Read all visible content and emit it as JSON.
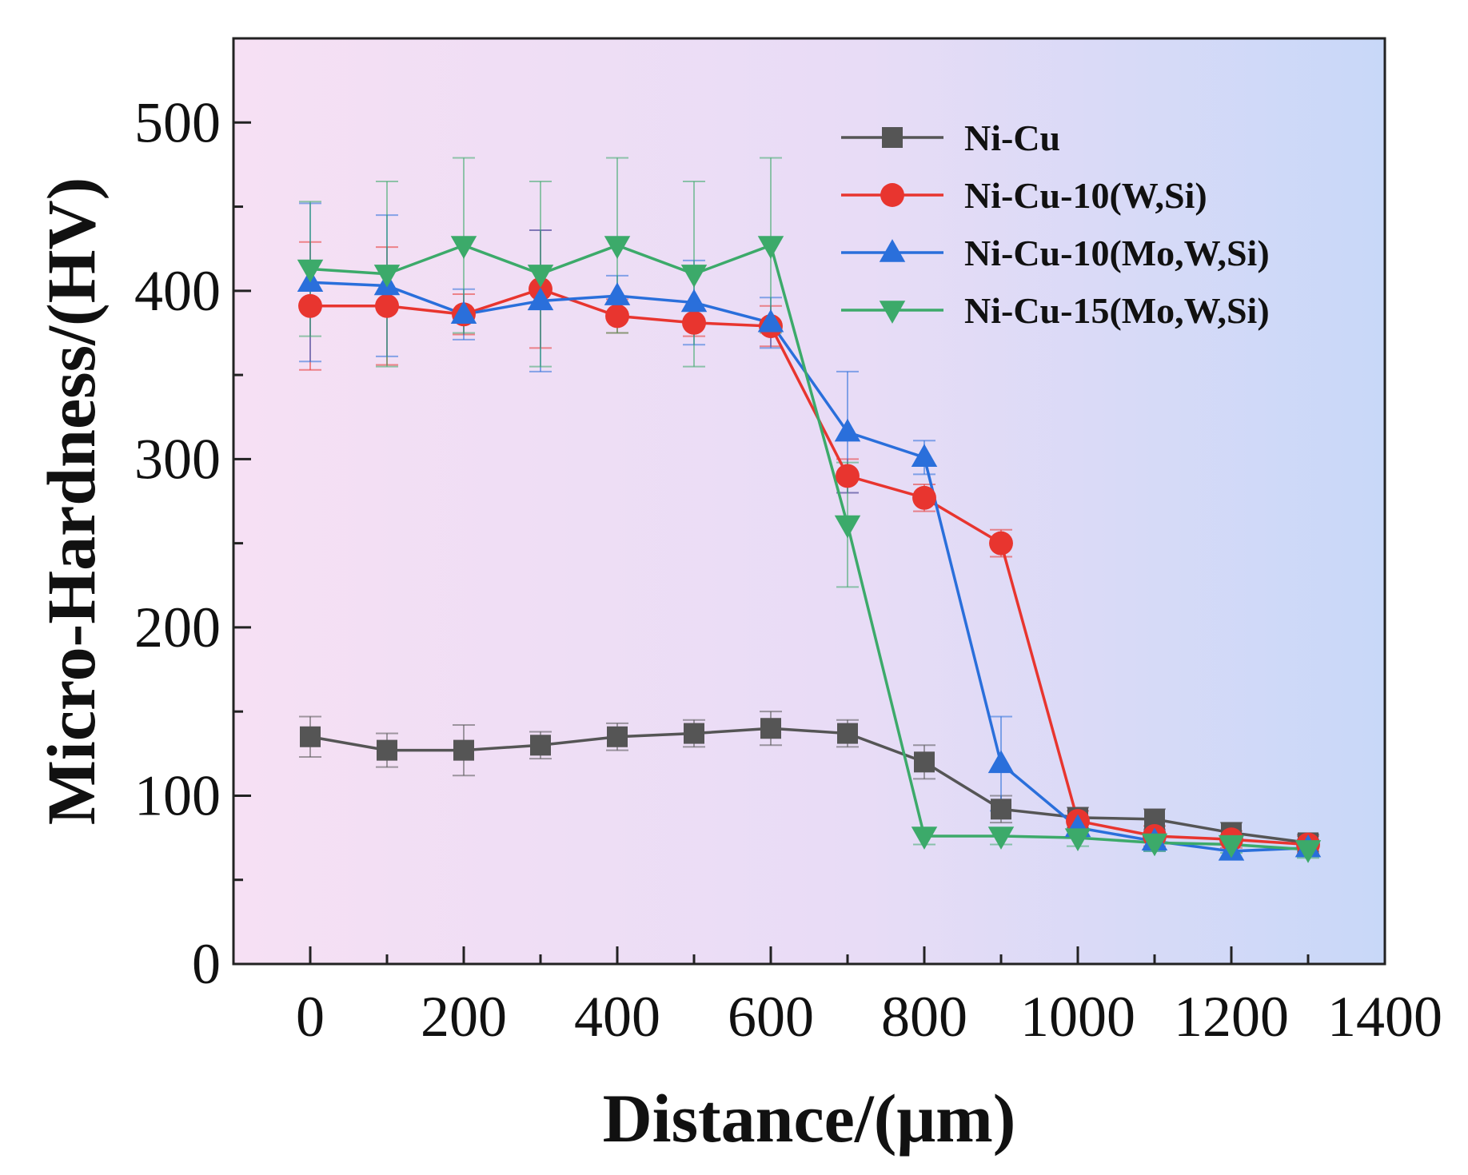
{
  "chart_data": {
    "type": "line",
    "title": "",
    "xlabel": "Distance/(μm)",
    "ylabel": "Micro-Hardness/(HV)",
    "xlim": [
      -100,
      1400
    ],
    "ylim": [
      0,
      550
    ],
    "xticks": [
      0,
      200,
      400,
      600,
      800,
      1000,
      1200,
      1400
    ],
    "yticks": [
      0,
      100,
      200,
      300,
      400,
      500
    ],
    "x": [
      0,
      100,
      200,
      300,
      400,
      500,
      600,
      700,
      800,
      900,
      1000,
      1100,
      1200,
      1300
    ],
    "legend_position": "top-right",
    "series": [
      {
        "name": "Ni-Cu",
        "color": "#555555",
        "marker": "square",
        "values": [
          135,
          127,
          127,
          130,
          135,
          137,
          140,
          137,
          120,
          92,
          87,
          86,
          78,
          72
        ],
        "errors": [
          12,
          10,
          15,
          8,
          8,
          8,
          10,
          8,
          10,
          8,
          6,
          6,
          6,
          5
        ]
      },
      {
        "name": "Ni-Cu-10(W,Si)",
        "color": "#e8352f",
        "marker": "circle",
        "values": [
          391,
          391,
          386,
          401,
          385,
          381,
          379,
          290,
          277,
          250,
          85,
          76,
          74,
          71
        ],
        "errors": [
          38,
          35,
          12,
          35,
          10,
          8,
          12,
          10,
          8,
          8,
          6,
          6,
          5,
          5
        ]
      },
      {
        "name": "Ni-Cu-10(Mo,W,Si)",
        "color": "#2a6fdb",
        "marker": "triangle-up",
        "values": [
          405,
          403,
          386,
          394,
          397,
          393,
          381,
          316,
          301,
          119,
          81,
          73,
          67,
          69
        ],
        "errors": [
          47,
          42,
          15,
          42,
          12,
          25,
          15,
          36,
          10,
          28,
          6,
          6,
          5,
          5
        ]
      },
      {
        "name": "Ni-Cu-15(Mo,W,Si)",
        "color": "#3caa6a",
        "marker": "triangle-down",
        "values": [
          413,
          410,
          427,
          410,
          427,
          410,
          427,
          261,
          76,
          76,
          75,
          72,
          71,
          68
        ],
        "errors": [
          40,
          55,
          52,
          55,
          52,
          55,
          52,
          37,
          5,
          5,
          5,
          5,
          5,
          5
        ]
      }
    ],
    "background_gradient": [
      "#f6e0f4",
      "#e8dcf6",
      "#c8d8f8"
    ]
  }
}
